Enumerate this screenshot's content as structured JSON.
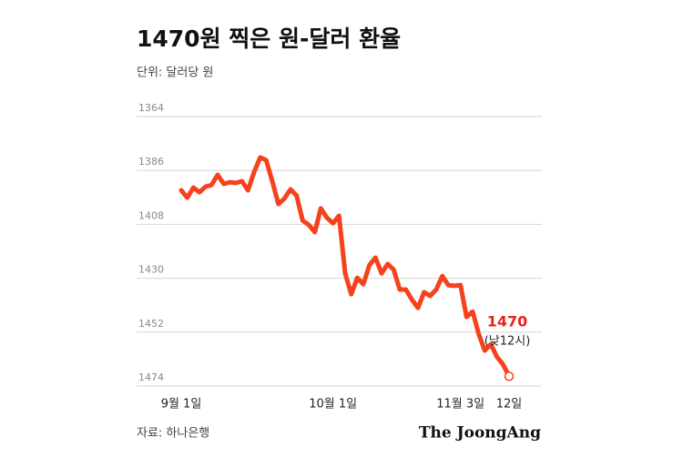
{
  "chart_data": {
    "type": "line",
    "title": "1470원 찍은 원-달러 환율",
    "subtitle": "단위: 달러당 원",
    "source": "자료: 하나은행",
    "brand": "The JoongAng",
    "annotation_note": "(낮12시)",
    "categories": [
      "9월 1일",
      null,
      null,
      null,
      null,
      null,
      null,
      null,
      null,
      null,
      null,
      null,
      null,
      null,
      null,
      null,
      null,
      null,
      null,
      null,
      null,
      null,
      null,
      null,
      null,
      "10월 1일",
      null,
      null,
      null,
      null,
      null,
      null,
      null,
      null,
      null,
      null,
      null,
      null,
      null,
      null,
      null,
      null,
      null,
      null,
      null,
      null,
      "11월 3일",
      null,
      null,
      null,
      null,
      null,
      null,
      null,
      "12일"
    ],
    "values": [
      1394.1,
      1397.1,
      1393.0,
      1394.9,
      1392.6,
      1391.9,
      1387.8,
      1391.5,
      1390.8,
      1391.1,
      1390.4,
      1394.1,
      1386.7,
      1380.7,
      1381.8,
      1390.4,
      1399.7,
      1397.5,
      1393.7,
      1396.3,
      1406.4,
      1408.2,
      1411.2,
      1401.5,
      1405.3,
      1407.5,
      1404.5,
      1428.0,
      1436.5,
      1429.8,
      1432.4,
      1424.6,
      1421.6,
      1428.0,
      1424.2,
      1426.5,
      1434.6,
      1434.6,
      1438.7,
      1442.1,
      1435.7,
      1437.2,
      1434.6,
      1429.1,
      1432.8,
      1433.1,
      1432.8,
      1445.8,
      1443.6,
      1452.8,
      1459.5,
      1456.9,
      1462.1,
      1465.1,
      1470
    ],
    "color": "#f5421d",
    "ylim": [
      1364,
      1474
    ],
    "y_inverted": true,
    "yticks": [
      1364,
      1386,
      1408,
      1430,
      1452,
      1474
    ],
    "grid": true
  }
}
